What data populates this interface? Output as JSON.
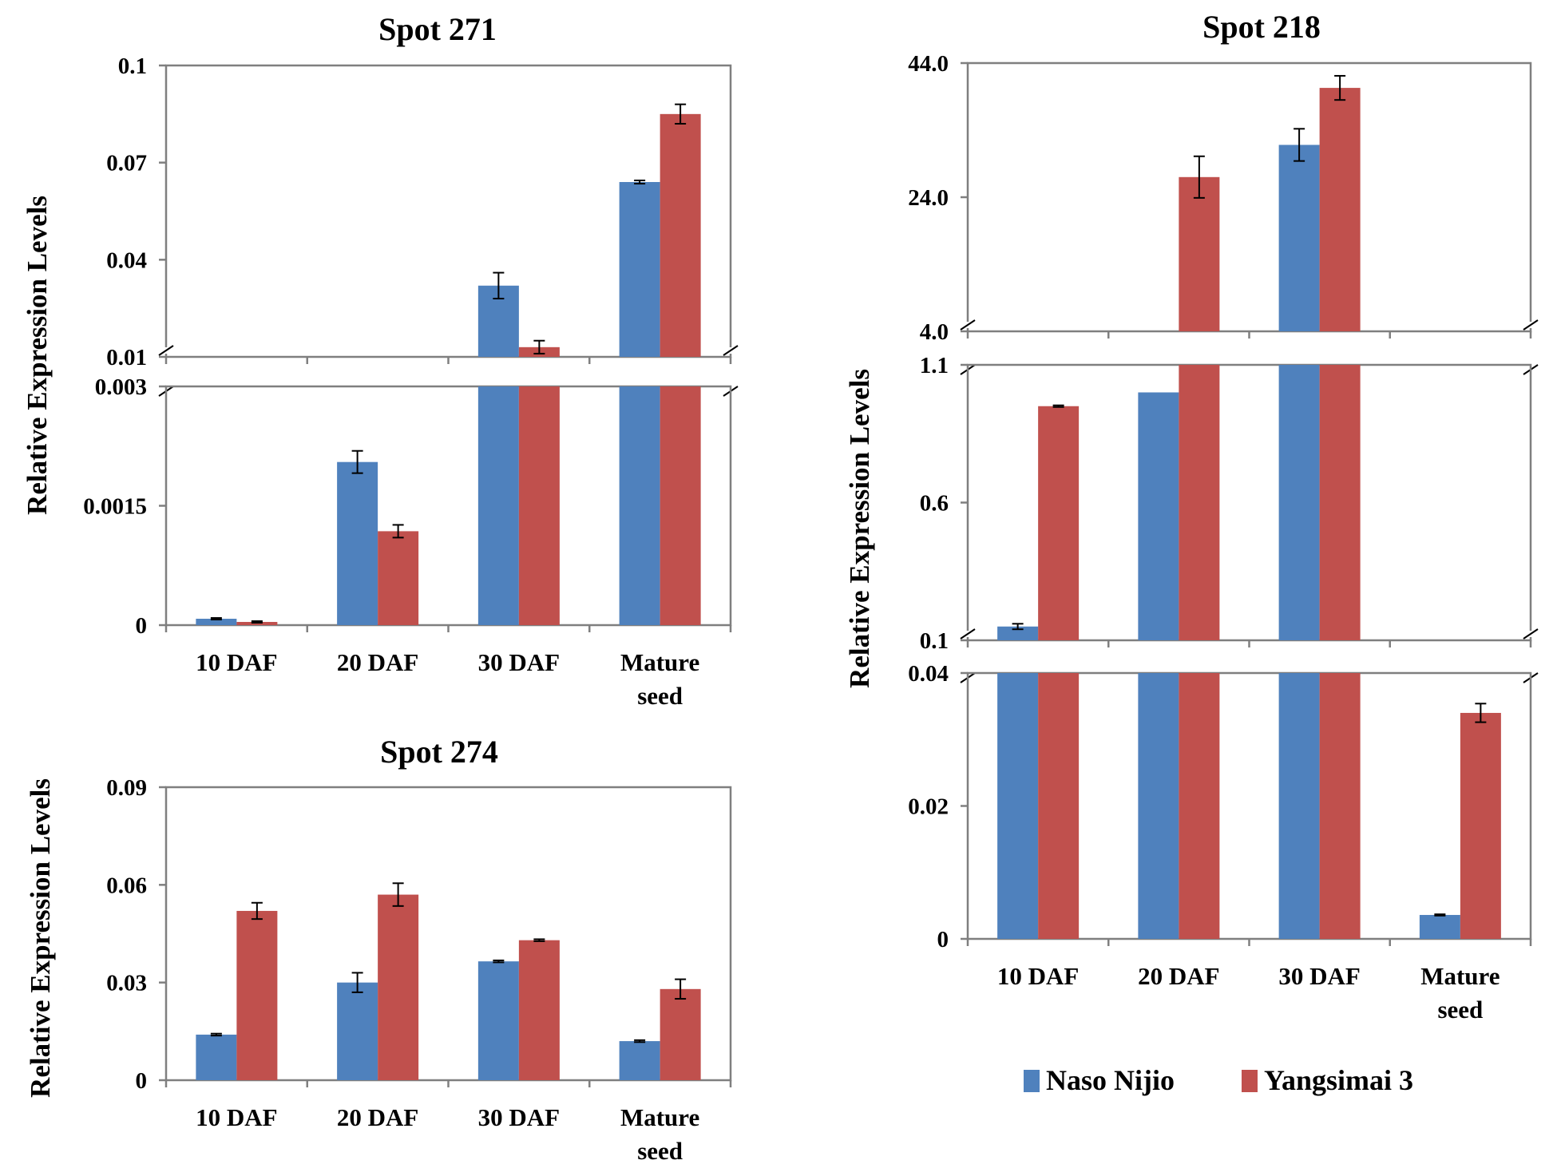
{
  "legend": {
    "series": [
      {
        "name": "Naso Nijio",
        "color": "#4f81bd"
      },
      {
        "name": "Yangsimai 3",
        "color": "#c0504d"
      }
    ]
  },
  "chart_data": [
    {
      "type": "bar",
      "title": "Spot 271",
      "ylabel": "Relative Expression Levels",
      "categories": [
        "10 DAF",
        "20 DAF",
        "30 DAF",
        "Mature seed"
      ],
      "series": [
        {
          "name": "Naso Nijio",
          "values": [
            8e-05,
            0.00205,
            0.032,
            0.064
          ],
          "errors": [
            1e-05,
            0.00014,
            0.004,
            0.0005
          ]
        },
        {
          "name": "Yangsimai 3",
          "values": [
            4e-05,
            0.00118,
            0.013,
            0.085
          ],
          "errors": [
            1e-05,
            8e-05,
            0.002,
            0.003
          ]
        }
      ],
      "axis_broken": true,
      "segments": [
        {
          "ylim": [
            0.01,
            0.1
          ],
          "ticks": [
            "0.1",
            "0.07",
            "0.04",
            "0.01"
          ]
        },
        {
          "ylim": [
            0,
            0.003
          ],
          "ticks": [
            "0.003",
            "0.0015",
            "0"
          ]
        }
      ]
    },
    {
      "type": "bar",
      "title": "Spot 274",
      "ylabel": "Relative Expression Levels",
      "categories": [
        "10 DAF",
        "20 DAF",
        "30 DAF",
        "Mature seed"
      ],
      "series": [
        {
          "name": "Naso Nijio",
          "values": [
            0.014,
            0.03,
            0.0365,
            0.012
          ],
          "errors": [
            0.0003,
            0.003,
            0.0003,
            0.0003
          ]
        },
        {
          "name": "Yangsimai 3",
          "values": [
            0.052,
            0.057,
            0.043,
            0.028
          ],
          "errors": [
            0.0025,
            0.0035,
            0.0003,
            0.003
          ]
        }
      ],
      "ylim": [
        0,
        0.09
      ],
      "ticks": [
        "0.09",
        "0.06",
        "0.03",
        "0"
      ]
    },
    {
      "type": "bar",
      "title": "Spot 218",
      "ylabel": "Relative Expression Levels",
      "categories": [
        "10 DAF",
        "20 DAF",
        "30 DAF",
        "Mature seed"
      ],
      "series": [
        {
          "name": "Naso Nijio",
          "values": [
            0.15,
            1.0,
            31.8,
            0.0036
          ],
          "errors": [
            0.01,
            0.0,
            2.4,
            0.0001
          ]
        },
        {
          "name": "Yangsimai 3",
          "values": [
            0.95,
            27.0,
            40.3,
            0.034
          ],
          "errors": [
            0.003,
            3.1,
            1.8,
            0.0014
          ]
        }
      ],
      "axis_broken": true,
      "segments": [
        {
          "ylim": [
            4.0,
            44.0
          ],
          "ticks": [
            "44.0",
            "24.0",
            "4.0"
          ]
        },
        {
          "ylim": [
            0.1,
            1.1
          ],
          "ticks": [
            "1.1",
            "0.6",
            "0.1"
          ]
        },
        {
          "ylim": [
            0,
            0.04
          ],
          "ticks": [
            "0.04",
            "0.02",
            "0"
          ]
        }
      ]
    }
  ]
}
